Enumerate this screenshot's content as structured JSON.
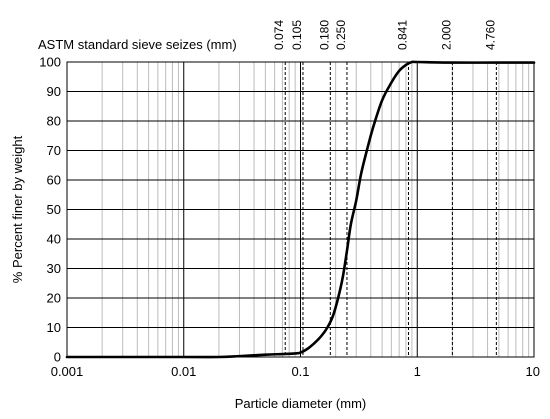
{
  "chart_data": {
    "type": "line",
    "xlabel": "Particle diameter (mm)",
    "ylabel": "% Percent finer by weight",
    "top_axis_label": "ASTM standard sieve seizes (mm)",
    "x_scale": "log",
    "xlim": [
      0.001,
      10
    ],
    "ylim": [
      0,
      100
    ],
    "x_ticks": [
      0.001,
      0.01,
      0.1,
      1,
      10
    ],
    "x_tick_labels": [
      "0.001",
      "0.01",
      "0.1",
      "1",
      "10"
    ],
    "y_ticks": [
      0,
      10,
      20,
      30,
      40,
      50,
      60,
      70,
      80,
      90,
      100
    ],
    "y_tick_labels": [
      "0",
      "10",
      "20",
      "30",
      "40",
      "50",
      "60",
      "70",
      "80",
      "90",
      "100"
    ],
    "grid": true,
    "sieve_sizes": [
      0.074,
      0.105,
      0.18,
      0.25,
      0.841,
      2.0,
      4.76
    ],
    "sieve_labels": [
      "0.074",
      "0.105",
      "0.180",
      "0.250",
      "0.841",
      "2.000",
      "4.760"
    ],
    "series": [
      {
        "x": [
          0.001,
          0.01,
          0.02,
          0.03,
          0.05,
          0.07,
          0.09,
          0.1,
          0.115,
          0.13,
          0.15,
          0.17,
          0.19,
          0.21,
          0.23,
          0.25,
          0.27,
          0.3,
          0.33,
          0.37,
          0.42,
          0.5,
          0.6,
          0.7,
          0.8,
          0.9,
          1.0,
          2.0,
          4.76,
          10
        ],
        "y": [
          0,
          0,
          0,
          0.3,
          0.8,
          1.0,
          1.2,
          1.5,
          2.8,
          4.5,
          7.0,
          10.0,
          14.0,
          20.0,
          27.0,
          36.0,
          45.0,
          53.0,
          62.0,
          70.0,
          78.0,
          87.0,
          93.0,
          97.0,
          99.0,
          100,
          100,
          99.8,
          99.8,
          99.8
        ]
      }
    ]
  }
}
